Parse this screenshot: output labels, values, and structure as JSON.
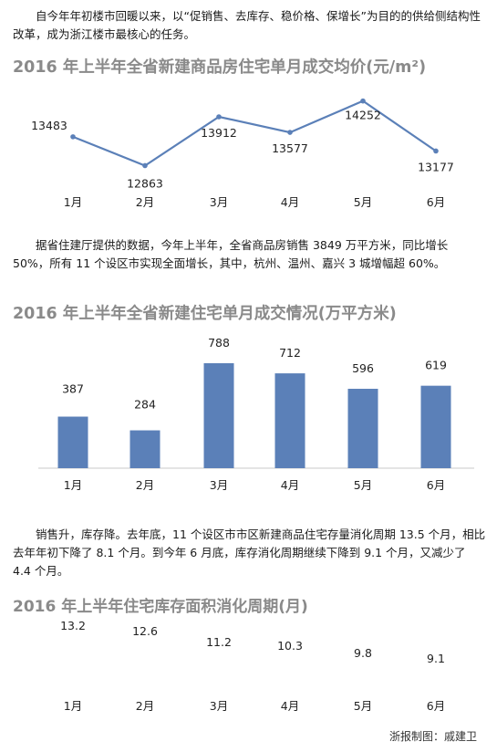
{
  "intro": "自今年年初楼市回暖以来，以“促销售、去库存、稳价格、保增长”为目的的供给侧结构性改革，成为浙江楼市最核心的任务。",
  "chart1_title": "2016 年上半年全省新建商品房住宅单月成交均价(元/m²)",
  "para2": "据省住建厅提供的数据，今年上半年，全省商品房销售 3849 万平方米，同比增长 50%，所有 11 个设区市实现全面增长，其中，杭州、温州、嘉兴 3 城增幅超 60%。",
  "chart2_title": "2016 年上半年全省新建住宅单月成交情况(万平方米)",
  "para3": "销售升，库存降。去年底，11 个设区市市区新建商品住宅存量消化周期 13.5 个月，相比去年年初下降了 8.1 个月。到今年 6 月底，库存消化周期继续下降到 9.1 个月，又减少了 4.4 个月。",
  "chart3_title": "2016 年上半年住宅库存面积消化周期(月)",
  "credit": "浙报制图：戚建卫",
  "chart_data": [
    {
      "type": "line",
      "title": "2016 年上半年全省新建商品房住宅单月成交均价(元/m²)",
      "categories": [
        "1月",
        "2月",
        "3月",
        "4月",
        "5月",
        "6月"
      ],
      "values": [
        13483,
        12863,
        13912,
        13577,
        14252,
        13177
      ],
      "labels": [
        "13483",
        "12863",
        "13912",
        "13577",
        "14252",
        "13177"
      ],
      "color": "#5b80b8"
    },
    {
      "type": "bar",
      "title": "2016 年上半年全省新建住宅单月成交情况(万平方米)",
      "categories": [
        "1月",
        "2月",
        "3月",
        "4月",
        "5月",
        "6月"
      ],
      "values": [
        387,
        284,
        788,
        712,
        596,
        619
      ],
      "labels": [
        "387",
        "284",
        "788",
        "712",
        "596",
        "619"
      ],
      "color": "#5b80b8"
    },
    {
      "type": "table",
      "title": "2016 年上半年住宅库存面积消化周期(月)",
      "categories": [
        "1月",
        "2月",
        "3月",
        "4月",
        "5月",
        "6月"
      ],
      "values": [
        13.2,
        12.6,
        11.2,
        10.3,
        9.8,
        9.1
      ],
      "labels": [
        "13.2",
        "12.6",
        "11.2",
        "10.3",
        "9.8",
        "9.1"
      ]
    }
  ]
}
